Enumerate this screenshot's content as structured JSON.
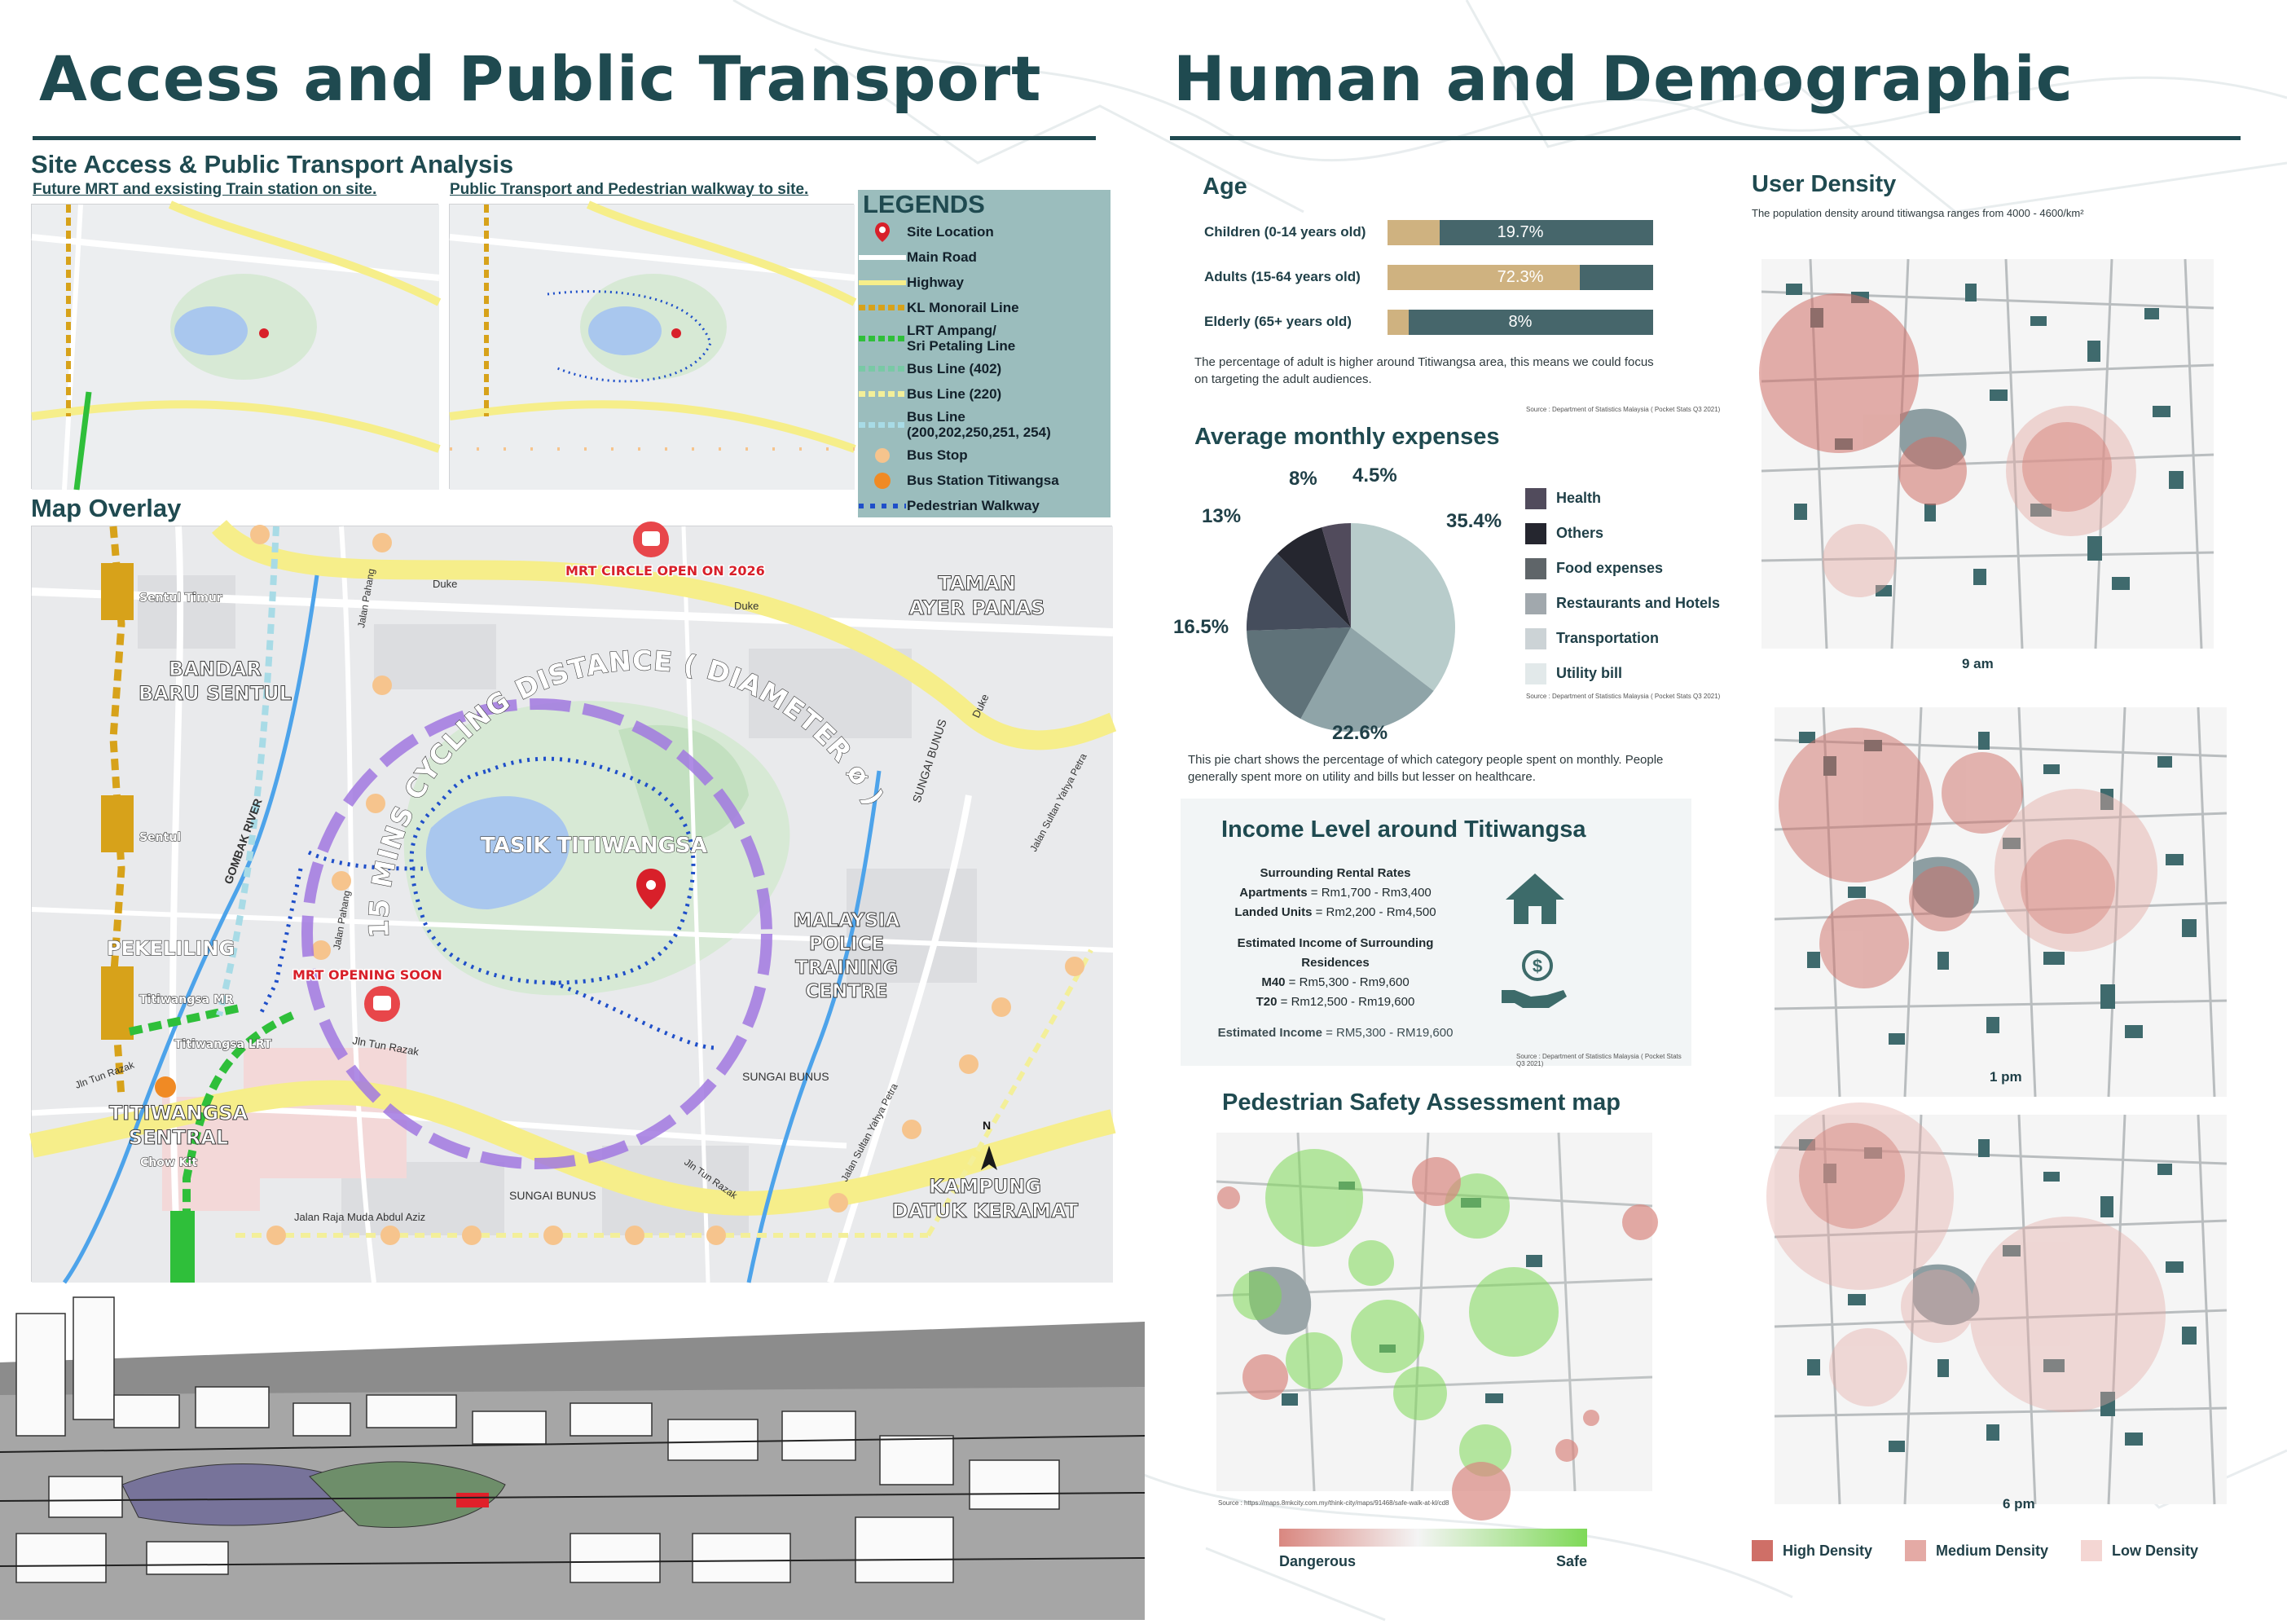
{
  "left": {
    "title": "Access and Public Transport",
    "section_title": "Site Access & Public Transport Analysis",
    "map1_caption": "Future MRT and exsisting Train station on site.",
    "map2_caption": "Public Transport and Pedestrian walkway to site.",
    "legend": {
      "title": "LEGENDS",
      "items": [
        {
          "label": "Site Location",
          "symbol": "pin-icon",
          "color": "#d8202a"
        },
        {
          "label": "Main Road",
          "symbol": "line",
          "color": "#ffffff"
        },
        {
          "label": "Highway",
          "symbol": "line",
          "color": "#f6ee8a"
        },
        {
          "label": "KL Monorail Line",
          "symbol": "dashed",
          "color": "#d7a21a"
        },
        {
          "label": "LRT Ampang/\nSri Petaling Line",
          "symbol": "dashed",
          "color": "#2fbf3a"
        },
        {
          "label": "Bus Line (402)",
          "symbol": "dashed",
          "color": "#79c9a5"
        },
        {
          "label": "Bus Line (220)",
          "symbol": "dashed",
          "color": "#f3ef9a"
        },
        {
          "label": "Bus Line\n(200,202,250,251, 254)",
          "symbol": "dashed",
          "color": "#a8dbe6"
        },
        {
          "label": "Bus Stop",
          "symbol": "dot",
          "color": "#f6c48d"
        },
        {
          "label": "Bus Station Titiwangsa",
          "symbol": "bus-station-icon",
          "color": "#f08a24"
        },
        {
          "label": "Pedestrian Walkway",
          "symbol": "dotted",
          "color": "#1f4fc9"
        }
      ]
    },
    "map_overlay_title": "Map Overlay",
    "map_labels": {
      "mrt_circle": "MRT CIRCLE OPEN ON 2026",
      "taman": "TAMAN\nAYER PANAS",
      "bandar": "BANDAR\nBARU SENTUL",
      "cycling": "15 MINS CYCLING DISTANCE ( DIAMETER ø )",
      "tasik": "TASIK TITIWANGSA",
      "malaysia": "MALAYSIA\nPOLICE\nTRAINING\nCENTRE",
      "pekeliling": "PEKELILING",
      "mrt_opening": "MRT OPENING SOON",
      "titiwangsa_sentral": "TITIWANGSA\nSENTRAL",
      "kampung": "KAMPUNG\nDATUK KERAMAT",
      "sentul_timur": "Sentul Timur",
      "sentul": "Sentul",
      "titiwangsa_mr": "Titiwangsa MR",
      "titiwangsa_lrt": "Titiwangsa LRT",
      "chow_kit": "Chow Kit",
      "jln_tun_razak": "Jln Tun Razak",
      "jln_tun_razak2": "Jln Tun Razak",
      "jln_tun_razak3": "Jln Tun Razak",
      "sungai_bunus": "SUNGAI BUNUS",
      "sungai_bunus2": "SUNGAI BUNUS",
      "sungai_bunus3": "SUNGAI BUNUS",
      "jalan_raja": "Jalan Raja Muda Abdul Aziz",
      "gombak": "GOMBAK RIVER",
      "jalan_pahang": "Jalan Pahang",
      "jalan_pahang2": "Jalan Pahang",
      "duke": "Duke",
      "duke2": "Duke",
      "duke3": "Duke",
      "jalan_sultan": "Jalan Sultan Yahya Petra",
      "jalan_sultan2": "Jalan Sultan Yahya Petra",
      "north": "N"
    }
  },
  "right": {
    "title": "Human and Demographic",
    "age": {
      "title": "Age",
      "bars": [
        {
          "label": "Children (0-14 years old)",
          "value": 19.7,
          "display": "19.7%"
        },
        {
          "label": "Adults (15-64 years old)",
          "value": 72.3,
          "display": "72.3%"
        },
        {
          "label": "Elderly (65+ years old)",
          "value": 8,
          "display": "8%"
        }
      ],
      "note": "The percentage of adult is higher around Titiwangsa area, this means we could focus on targeting the adult audiences.",
      "source": "Source : Department of Statistics Malaysia ( Pocket Stats Q3 2021)"
    },
    "expenses": {
      "title": "Average monthly expenses",
      "note": "This pie chart shows the percentage of which category people spent on monthly. People generally spent more on utility and bills but lesser on healthcare.",
      "source": "Source : Department of Statistics Malaysia ( Pocket Stats Q3 2021)"
    },
    "income": {
      "title": "Income Level around Titiwangsa",
      "rental_heading": "Surrounding Rental Rates",
      "apartments_key": "Apartments",
      "apartments_val": " = Rm1,700 - Rm3,400",
      "landed_key": "Landed Units",
      "landed_val": " = Rm2,200 - Rm4,500",
      "est_heading": "Estimated Income of Surrounding Residences",
      "m40_key": "M40",
      "m40_val": " = Rm5,300 - Rm9,600",
      "t20_key": "T20",
      "t20_val": " = Rm12,500 - Rm19,600",
      "est_key": "Estimated Income",
      "est_val": " = RM5,300 - RM19,600",
      "source": "Source : Department of Statistics Malaysia ( Pocket Stats Q3 2021)"
    },
    "safety": {
      "title": "Pedestrian Safety Assessment map",
      "source": "Source : https://maps.8mkcity.com.my/think-city/maps/91468/safe-walk-at-kl/cd8",
      "dangerous": "Dangerous",
      "safe": "Safe",
      "color_danger": "#d98780",
      "color_safe": "#7ed957"
    },
    "density": {
      "title": "User Density",
      "subtitle": "The population density around titiwangsa  ranges from 4000 - 4600/km²",
      "times": [
        "9 am",
        "1 pm",
        "6 pm"
      ],
      "legend": [
        {
          "label": "High Density",
          "color": "#cf6f67"
        },
        {
          "label": "Medium Density",
          "color": "#e4aaa5"
        },
        {
          "label": "Low Density",
          "color": "#f4d6d3"
        }
      ]
    }
  },
  "chart_data": {
    "type": "pie",
    "title": "Average monthly expenses",
    "slices": [
      {
        "label": "Utility bill",
        "value": 35.4,
        "color": "#b8cccb"
      },
      {
        "label": "Transportation",
        "value": 22.6,
        "color": "#8fa4a8"
      },
      {
        "label": "Restaurants and Hotels",
        "value": 16.5,
        "color": "#5f7279"
      },
      {
        "label": "Food expenses",
        "value": 13,
        "color": "#454d5c"
      },
      {
        "label": "Others",
        "value": 8,
        "color": "#25262f"
      },
      {
        "label": "Health",
        "value": 4.5,
        "color": "#514b5c"
      }
    ],
    "legend": [
      {
        "label": "Health",
        "color": "#514b5c"
      },
      {
        "label": "Others",
        "color": "#25262f"
      },
      {
        "label": "Food expenses",
        "color": "#5f6569"
      },
      {
        "label": "Restaurants and Hotels",
        "color": "#a1a8ad"
      },
      {
        "label": "Transportation",
        "color": "#ccd3d6"
      },
      {
        "label": "Utility bill",
        "color": "#e2e9ea"
      }
    ],
    "value_labels": [
      "35.4%",
      "22.6%",
      "16.5%",
      "13%",
      "8%",
      "4.5%"
    ]
  }
}
